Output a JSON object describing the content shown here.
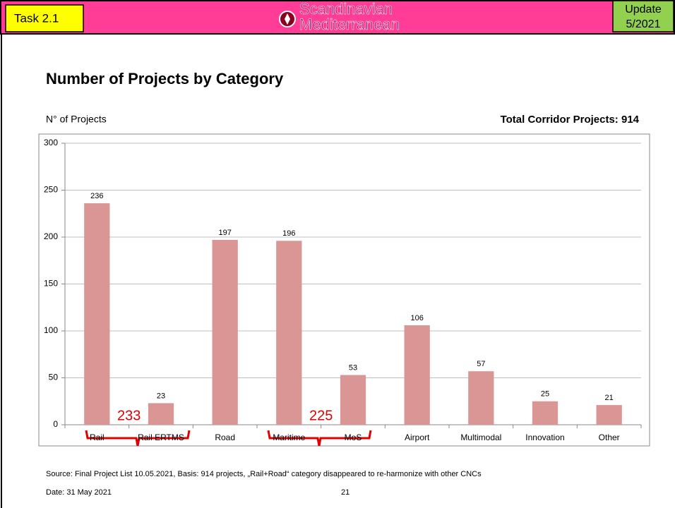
{
  "header": {
    "task": "Task 2.1",
    "logo_line1": "Scandinavian",
    "logo_line2": "Mediterranean",
    "update_line1": "Update",
    "update_line2": "5/2021"
  },
  "chart_data": {
    "type": "bar",
    "title": "Number of Projects by Category",
    "y_label": "N° of Projects",
    "total_label": "Total Corridor Projects: 914",
    "categories": [
      "Rail",
      "Rail ERTMS",
      "Road",
      "Maritime",
      "MoS",
      "Airport",
      "Multimodal",
      "Innovation",
      "Other"
    ],
    "values": [
      236,
      23,
      197,
      196,
      53,
      106,
      57,
      25,
      21
    ],
    "color": "#d99694",
    "ylim": [
      0,
      300
    ],
    "yticks": [
      0,
      50,
      100,
      150,
      200,
      250,
      300
    ],
    "grid": true,
    "annotations": [
      {
        "text": "233",
        "color": "#e00000"
      },
      {
        "text": "225",
        "color": "#e00000"
      }
    ]
  },
  "footer": {
    "source": "Source: Final Project List 10.05.2021, Basis: 914 projects, „Rail+Road“ category disappeared to re-harmonize with other CNCs",
    "date": "Date: 31 May 2021",
    "page": "21"
  }
}
